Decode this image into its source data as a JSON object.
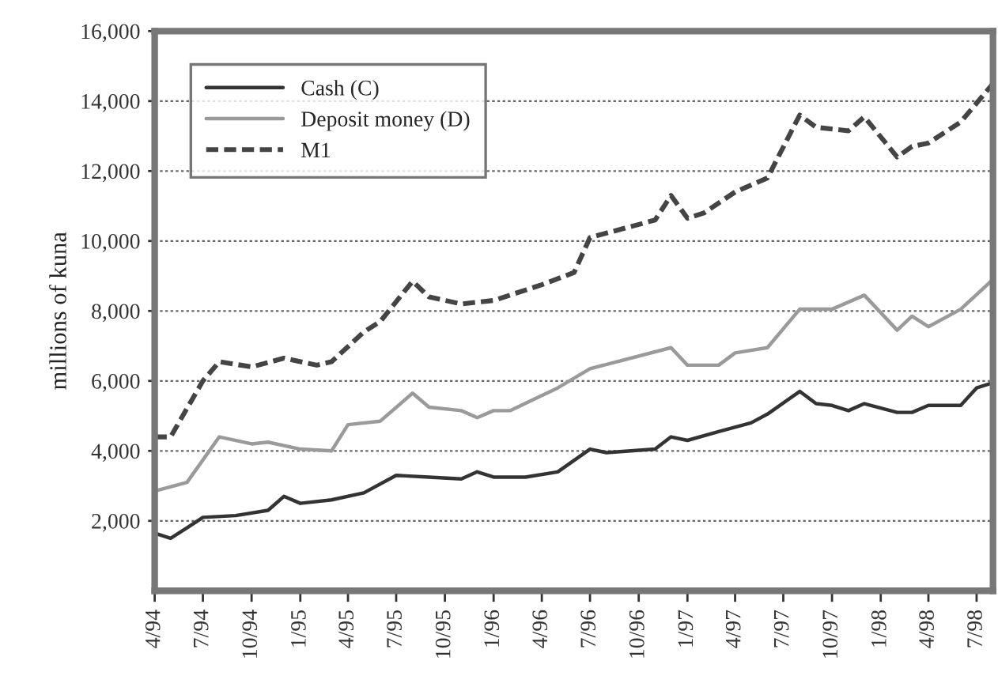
{
  "chart_data": {
    "type": "line",
    "ylabel": "millions of kuna",
    "ylim": [
      0,
      16000
    ],
    "yticks": [
      {
        "value": 2000,
        "label": "2,000"
      },
      {
        "value": 4000,
        "label": "4,000"
      },
      {
        "value": 6000,
        "label": "6,000"
      },
      {
        "value": 8000,
        "label": "8,000"
      },
      {
        "value": 10000,
        "label": "10,000"
      },
      {
        "value": 12000,
        "label": "12,000"
      },
      {
        "value": 14000,
        "label": "14,000"
      },
      {
        "value": 16000,
        "label": "16,000"
      }
    ],
    "xlim": [
      "1994-04",
      "1998-08"
    ],
    "xticks": [
      {
        "value": "1994-04",
        "label": "4/94"
      },
      {
        "value": "1994-07",
        "label": "7/94"
      },
      {
        "value": "1994-10",
        "label": "10/94"
      },
      {
        "value": "1995-01",
        "label": "1/95"
      },
      {
        "value": "1995-04",
        "label": "4/95"
      },
      {
        "value": "1995-07",
        "label": "7/95"
      },
      {
        "value": "1995-10",
        "label": "10/95"
      },
      {
        "value": "1996-01",
        "label": "1/96"
      },
      {
        "value": "1996-04",
        "label": "4/96"
      },
      {
        "value": "1996-07",
        "label": "7/96"
      },
      {
        "value": "1996-10",
        "label": "10/96"
      },
      {
        "value": "1997-01",
        "label": "1/97"
      },
      {
        "value": "1997-04",
        "label": "4/97"
      },
      {
        "value": "1997-07",
        "label": "7/97"
      },
      {
        "value": "1997-10",
        "label": "10/97"
      },
      {
        "value": "1998-01",
        "label": "1/98"
      },
      {
        "value": "1998-04",
        "label": "4/98"
      },
      {
        "value": "1998-07",
        "label": "7/98"
      }
    ],
    "grid": "y",
    "legend": "top left",
    "series": [
      {
        "name": "Cash (C)",
        "color": "#333333",
        "line_style": "solid",
        "x": [
          "1994-04",
          "1994-05",
          "1994-06",
          "1994-07",
          "1994-09",
          "1994-11",
          "1994-12",
          "1995-01",
          "1995-03",
          "1995-05",
          "1995-07",
          "1995-09",
          "1995-11",
          "1995-12",
          "1996-01",
          "1996-03",
          "1996-05",
          "1996-07",
          "1996-08",
          "1996-11",
          "1996-12",
          "1997-01",
          "1997-03",
          "1997-05",
          "1997-06",
          "1997-08",
          "1997-09",
          "1997-10",
          "1997-11",
          "1997-12",
          "1998-02",
          "1998-03",
          "1998-04",
          "1998-06",
          "1998-07",
          "1998-08"
        ],
        "values": [
          1650,
          1500,
          1800,
          2100,
          2150,
          2300,
          2700,
          2500,
          2600,
          2800,
          3300,
          3250,
          3200,
          3400,
          3250,
          3250,
          3400,
          4050,
          3950,
          4050,
          4400,
          4300,
          4550,
          4800,
          5050,
          5700,
          5350,
          5300,
          5150,
          5350,
          5100,
          5100,
          5300,
          5300,
          5800,
          5950
        ]
      },
      {
        "name": "Deposit money (D)",
        "color": "#9a9a9a",
        "line_style": "solid",
        "x": [
          "1994-04",
          "1994-06",
          "1994-08",
          "1994-10",
          "1994-11",
          "1995-01",
          "1995-03",
          "1995-04",
          "1995-06",
          "1995-08",
          "1995-09",
          "1995-11",
          "1995-12",
          "1996-01",
          "1996-02",
          "1996-05",
          "1996-07",
          "1996-12",
          "1997-01",
          "1997-03",
          "1997-04",
          "1997-06",
          "1997-08",
          "1997-10",
          "1997-12",
          "1998-02",
          "1998-03",
          "1998-04",
          "1998-06",
          "1998-08"
        ],
        "values": [
          2850,
          3100,
          4400,
          4200,
          4250,
          4050,
          4000,
          4750,
          4850,
          5650,
          5250,
          5150,
          4950,
          5150,
          5150,
          5800,
          6350,
          6950,
          6450,
          6450,
          6800,
          6950,
          8050,
          8050,
          8450,
          7450,
          7850,
          7550,
          8050,
          8900
        ]
      },
      {
        "name": "M1",
        "color": "#444444",
        "line_style": "dashed",
        "x": [
          "1994-04",
          "1994-05",
          "1994-07",
          "1994-08",
          "1994-10",
          "1994-12",
          "1995-02",
          "1995-03",
          "1995-05",
          "1995-06",
          "1995-08",
          "1995-09",
          "1995-11",
          "1996-01",
          "1996-04",
          "1996-06",
          "1996-07",
          "1996-09",
          "1996-11",
          "1996-12",
          "1997-01",
          "1997-02",
          "1997-04",
          "1997-06",
          "1997-08",
          "1997-09",
          "1997-11",
          "1997-12",
          "1998-02",
          "1998-03",
          "1998-04",
          "1998-06",
          "1998-08"
        ],
        "values": [
          4400,
          4400,
          6000,
          6550,
          6400,
          6650,
          6450,
          6550,
          7400,
          7700,
          8850,
          8400,
          8200,
          8300,
          8750,
          9100,
          10100,
          10350,
          10600,
          11300,
          10650,
          10800,
          11400,
          11800,
          13600,
          13250,
          13150,
          13550,
          12400,
          12700,
          12800,
          13400,
          14500
        ]
      }
    ]
  }
}
